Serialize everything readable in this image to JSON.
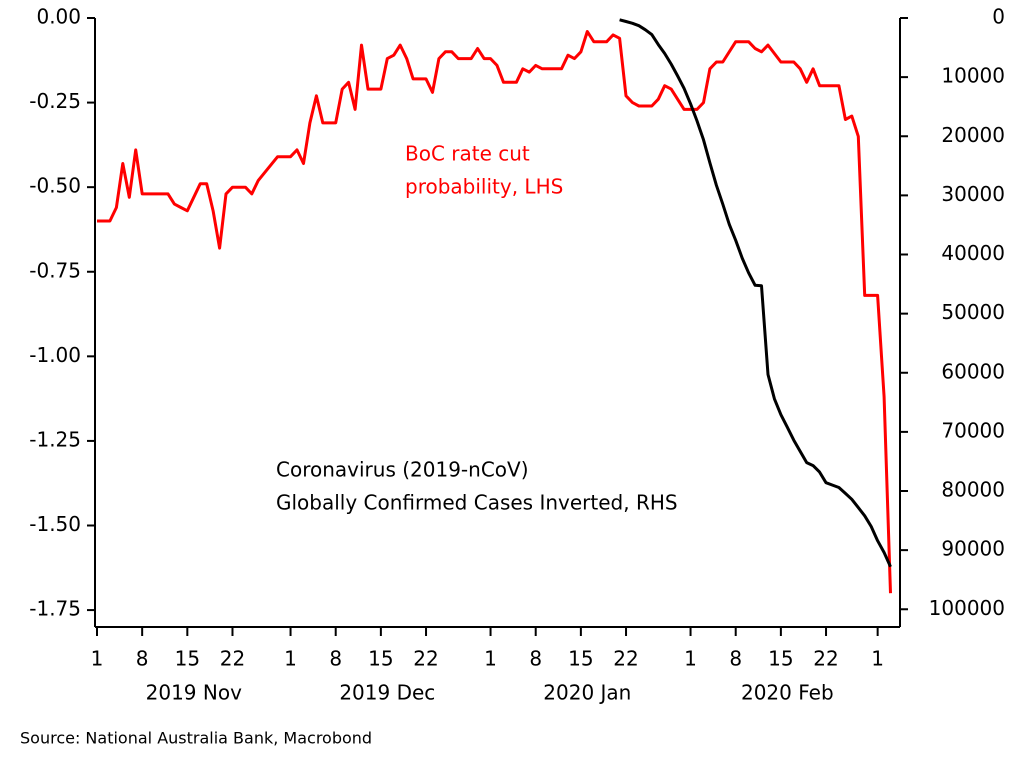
{
  "chart_data": {
    "type": "line",
    "source": "Source: National Australia Bank, Macrobond",
    "annotations": [
      {
        "lines": [
          "BoC rate cut",
          "probability, LHS"
        ],
        "color": "#ff0000"
      },
      {
        "lines": [
          "Coronavirus (2019-nCoV)",
          "Globally Confirmed Cases Inverted, RHS"
        ],
        "color": "#000000"
      }
    ],
    "xlim": [
      "2019-11-01",
      "2020-03-04"
    ],
    "xticks": [
      {
        "value": "2019-11-01",
        "label": "1"
      },
      {
        "value": "2019-11-08",
        "label": "8"
      },
      {
        "value": "2019-11-15",
        "label": "15"
      },
      {
        "value": "2019-11-22",
        "label": "22"
      },
      {
        "value": "2019-12-01",
        "label": "1"
      },
      {
        "value": "2019-12-08",
        "label": "8"
      },
      {
        "value": "2019-12-15",
        "label": "15"
      },
      {
        "value": "2019-12-22",
        "label": "22"
      },
      {
        "value": "2020-01-01",
        "label": "1"
      },
      {
        "value": "2020-01-08",
        "label": "8"
      },
      {
        "value": "2020-01-15",
        "label": "15"
      },
      {
        "value": "2020-01-22",
        "label": "22"
      },
      {
        "value": "2020-02-01",
        "label": "1"
      },
      {
        "value": "2020-02-08",
        "label": "8"
      },
      {
        "value": "2020-02-15",
        "label": "15"
      },
      {
        "value": "2020-02-22",
        "label": "22"
      },
      {
        "value": "2020-03-01",
        "label": "1"
      }
    ],
    "months": [
      {
        "value": "2019-11",
        "label": "2019 Nov"
      },
      {
        "value": "2019-12",
        "label": "2019 Dec"
      },
      {
        "value": "2020-01",
        "label": "2020 Jan"
      },
      {
        "value": "2020-02",
        "label": "2020 Feb"
      }
    ],
    "ylim": [
      -1.8,
      0
    ],
    "yticks": [
      {
        "value": 0,
        "label": "0.00"
      },
      -0.25,
      {
        "value": -0.5,
        "label": "-0.50"
      },
      -0.75,
      {
        "value": -1,
        "label": "-1.00"
      },
      -1.25,
      {
        "value": -1.5,
        "label": "-1.50"
      },
      -1.75
    ],
    "y2lim": [
      0,
      103000
    ],
    "y2_inverted": true,
    "y2ticks": [
      0,
      10000,
      20000,
      30000,
      40000,
      50000,
      60000,
      70000,
      80000,
      90000,
      100000
    ],
    "series": [
      {
        "name": "BoC rate cut probability",
        "color": "#ff0000",
        "axis": "y",
        "x": [
          "2019-11-01",
          "2019-11-03",
          "2019-11-04",
          "2019-11-05",
          "2019-11-06",
          "2019-11-07",
          "2019-11-08",
          "2019-11-11",
          "2019-11-12",
          "2019-11-13",
          "2019-11-14",
          "2019-11-15",
          "2019-11-17",
          "2019-11-18",
          "2019-11-19",
          "2019-11-20",
          "2019-11-21",
          "2019-11-22",
          "2019-11-24",
          "2019-11-25",
          "2019-11-26",
          "2019-11-29",
          "2019-12-01",
          "2019-12-02",
          "2019-12-03",
          "2019-12-04",
          "2019-12-05",
          "2019-12-06",
          "2019-12-08",
          "2019-12-09",
          "2019-12-10",
          "2019-12-11",
          "2019-12-12",
          "2019-12-13",
          "2019-12-15",
          "2019-12-16",
          "2019-12-17",
          "2019-12-18",
          "2019-12-19",
          "2019-12-20",
          "2019-12-22",
          "2019-12-23",
          "2019-12-24",
          "2019-12-25",
          "2019-12-26",
          "2019-12-27",
          "2019-12-29",
          "2019-12-30",
          "2019-12-31",
          "2020-01-01",
          "2020-01-02",
          "2020-01-03",
          "2020-01-05",
          "2020-01-06",
          "2020-01-07",
          "2020-01-08",
          "2020-01-09",
          "2020-01-12",
          "2020-01-13",
          "2020-01-14",
          "2020-01-15",
          "2020-01-16",
          "2020-01-17",
          "2020-01-19",
          "2020-01-20",
          "2020-01-21",
          "2020-01-22",
          "2020-01-23",
          "2020-01-24",
          "2020-01-26",
          "2020-01-27",
          "2020-01-28",
          "2020-01-29",
          "2020-01-30",
          "2020-01-31",
          "2020-02-02",
          "2020-02-03",
          "2020-02-04",
          "2020-02-05",
          "2020-02-06",
          "2020-02-08",
          "2020-02-10",
          "2020-02-11",
          "2020-02-12",
          "2020-02-13",
          "2020-02-15",
          "2020-02-17",
          "2020-02-18",
          "2020-02-19",
          "2020-02-20",
          "2020-02-21",
          "2020-02-24",
          "2020-02-25",
          "2020-02-26",
          "2020-02-27",
          "2020-02-28",
          "2020-03-01",
          "2020-03-02",
          "2020-03-03"
        ],
        "values": [
          -0.6,
          -0.6,
          -0.56,
          -0.43,
          -0.53,
          -0.39,
          -0.52,
          -0.52,
          -0.52,
          -0.55,
          -0.56,
          -0.57,
          -0.49,
          -0.49,
          -0.57,
          -0.68,
          -0.52,
          -0.5,
          -0.5,
          -0.52,
          -0.48,
          -0.41,
          -0.41,
          -0.39,
          -0.43,
          -0.31,
          -0.23,
          -0.31,
          -0.31,
          -0.21,
          -0.19,
          -0.27,
          -0.08,
          -0.21,
          -0.21,
          -0.12,
          -0.11,
          -0.08,
          -0.12,
          -0.18,
          -0.18,
          -0.22,
          -0.12,
          -0.1,
          -0.1,
          -0.12,
          -0.12,
          -0.09,
          -0.12,
          -0.12,
          -0.14,
          -0.19,
          -0.19,
          -0.15,
          -0.16,
          -0.14,
          -0.15,
          -0.15,
          -0.11,
          -0.12,
          -0.1,
          -0.04,
          -0.07,
          -0.07,
          -0.05,
          -0.06,
          -0.23,
          -0.25,
          -0.26,
          -0.26,
          -0.24,
          -0.2,
          -0.21,
          -0.24,
          -0.27,
          -0.27,
          -0.25,
          -0.15,
          -0.13,
          -0.13,
          -0.07,
          -0.07,
          -0.09,
          -0.1,
          -0.08,
          -0.13,
          -0.13,
          -0.15,
          -0.19,
          -0.15,
          -0.2,
          -0.2,
          -0.3,
          -0.29,
          -0.35,
          -0.82,
          -0.82,
          -1.12,
          -1.7
        ]
      },
      {
        "name": "Globally Confirmed Cases Inverted",
        "color": "#000000",
        "axis": "y2",
        "x": [
          "2020-01-21",
          "2020-01-22",
          "2020-01-23",
          "2020-01-24",
          "2020-01-25",
          "2020-01-26",
          "2020-01-27",
          "2020-01-28",
          "2020-01-29",
          "2020-01-30",
          "2020-01-31",
          "2020-02-01",
          "2020-02-02",
          "2020-02-03",
          "2020-02-04",
          "2020-02-05",
          "2020-02-06",
          "2020-02-07",
          "2020-02-08",
          "2020-02-09",
          "2020-02-10",
          "2020-02-11",
          "2020-02-12",
          "2020-02-13",
          "2020-02-14",
          "2020-02-15",
          "2020-02-16",
          "2020-02-17",
          "2020-02-18",
          "2020-02-19",
          "2020-02-20",
          "2020-02-21",
          "2020-02-22",
          "2020-02-23",
          "2020-02-24",
          "2020-02-25",
          "2020-02-26",
          "2020-02-27",
          "2020-02-28",
          "2020-02-29",
          "2020-03-01",
          "2020-03-02",
          "2020-03-03"
        ],
        "values": [
          300,
          600,
          900,
          1300,
          2000,
          2800,
          4500,
          6000,
          7800,
          9800,
          11900,
          14500,
          17400,
          20600,
          24500,
          28300,
          31500,
          34900,
          37600,
          40600,
          43100,
          45200,
          45300,
          60300,
          64400,
          67100,
          69200,
          71400,
          73300,
          75200,
          75700,
          76800,
          78600,
          79000,
          79400,
          80400,
          81400,
          82800,
          84200,
          86000,
          88400,
          90400,
          92800
        ]
      }
    ]
  }
}
